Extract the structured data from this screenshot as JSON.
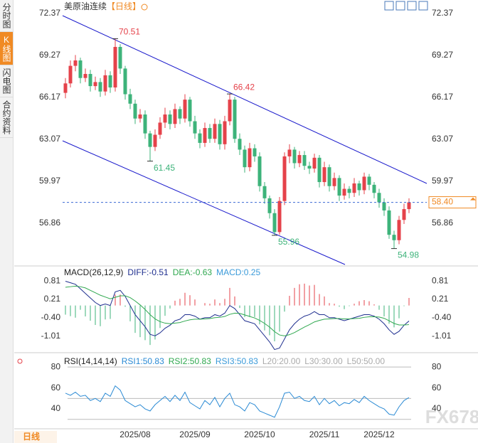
{
  "header": {
    "symbol": "美原油连续",
    "period": "【日线】"
  },
  "tabs": [
    "分时图",
    "K线图",
    "闪电图",
    "合约资料"
  ],
  "timeframe": "日线",
  "watermark": "FX678",
  "chart_data": {
    "type": "candlestick",
    "categories": [
      null,
      null,
      null,
      null,
      null,
      null,
      null,
      null,
      null,
      null,
      null,
      null,
      null,
      null,
      "2025/08",
      null,
      null,
      null,
      null,
      null,
      null,
      null,
      null,
      null,
      null,
      null,
      "2025/09",
      null,
      null,
      null,
      null,
      null,
      null,
      null,
      null,
      null,
      null,
      null,
      null,
      "2025/10",
      null,
      null,
      null,
      null,
      null,
      null,
      null,
      null,
      null,
      null,
      null,
      null,
      "2025/11",
      null,
      null,
      null,
      null,
      null,
      null,
      null,
      null,
      null,
      null,
      "2025/12",
      null,
      null,
      null,
      null,
      null,
      null
    ],
    "price": {
      "ylim": [
        53.8,
        72.95
      ],
      "yticks": [
        56.86,
        59.97,
        63.07,
        66.17,
        69.27,
        72.37
      ],
      "up_color": "#e5424a",
      "down_color": "#3db37a",
      "open": [
        66.5,
        67.2,
        68.5,
        68.9,
        67.6,
        67.9,
        67.0,
        67.3,
        66.6,
        67.8,
        66.9,
        69.9,
        68.3,
        66.4,
        65.7,
        64.6,
        64.9,
        63.5,
        62.5,
        63.4,
        64.3,
        64.9,
        64.2,
        65.3,
        64.6,
        66.0,
        64.4,
        63.5,
        62.8,
        63.9,
        63.1,
        64.2,
        62.7,
        64.4,
        66.0,
        63.1,
        62.3,
        61.0,
        62.4,
        61.8,
        59.6,
        58.7,
        57.6,
        56.2,
        58.5,
        61.8,
        62.3,
        61.3,
        61.9,
        61.1,
        60.9,
        61.7,
        59.9,
        61.0,
        59.6,
        60.2,
        58.9,
        59.4,
        59.1,
        59.8,
        59.3,
        60.3,
        59.7,
        59.1,
        58.4,
        57.8,
        56.0,
        55.6,
        57.1,
        57.9
      ],
      "high": [
        67.6,
        68.9,
        69.3,
        69.1,
        68.3,
        68.2,
        67.7,
        67.6,
        68.2,
        68.1,
        70.51,
        70.1,
        68.5,
        66.8,
        66.0,
        65.3,
        65.2,
        63.7,
        63.8,
        64.7,
        65.4,
        65.2,
        65.7,
        65.5,
        66.4,
        66.2,
        64.8,
        63.8,
        64.3,
        64.2,
        64.6,
        64.5,
        64.8,
        66.42,
        66.2,
        63.5,
        62.6,
        62.8,
        62.7,
        62.1,
        59.9,
        58.9,
        57.9,
        58.8,
        62.1,
        62.7,
        62.5,
        62.2,
        62.2,
        61.4,
        62.0,
        61.9,
        61.4,
        61.2,
        60.6,
        60.4,
        59.8,
        59.6,
        60.2,
        60.0,
        60.6,
        60.5,
        59.9,
        59.4,
        58.7,
        58.1,
        56.3,
        57.4,
        58.3,
        58.7
      ],
      "low": [
        66.1,
        66.9,
        68.1,
        67.2,
        67.3,
        66.6,
        66.7,
        66.2,
        66.3,
        66.5,
        66.6,
        67.9,
        66.0,
        65.3,
        64.2,
        64.3,
        63.1,
        61.45,
        62.2,
        63.1,
        63.9,
        63.8,
        63.9,
        64.2,
        64.3,
        64.0,
        63.1,
        62.4,
        62.5,
        62.8,
        62.8,
        62.3,
        62.3,
        64.1,
        62.8,
        61.9,
        60.6,
        60.7,
        61.4,
        59.2,
        58.3,
        57.2,
        55.96,
        56.0,
        58.2,
        61.3,
        60.9,
        61.0,
        60.8,
        60.5,
        60.6,
        59.5,
        59.6,
        59.2,
        59.3,
        58.5,
        58.6,
        58.7,
        58.8,
        58.9,
        59.0,
        59.3,
        58.7,
        58.0,
        57.4,
        55.7,
        54.98,
        55.3,
        56.8,
        57.6
      ],
      "close": [
        67.2,
        68.5,
        68.9,
        67.6,
        67.9,
        67.0,
        67.3,
        66.6,
        67.8,
        66.9,
        69.9,
        68.3,
        66.4,
        65.7,
        64.6,
        64.9,
        63.5,
        62.5,
        63.4,
        64.3,
        64.9,
        64.2,
        65.3,
        64.6,
        66.0,
        64.4,
        63.5,
        62.8,
        63.9,
        63.1,
        64.2,
        62.7,
        64.4,
        66.0,
        63.1,
        62.3,
        61.0,
        62.4,
        61.8,
        59.6,
        58.7,
        57.6,
        56.2,
        58.5,
        61.8,
        62.3,
        61.3,
        61.9,
        61.1,
        60.9,
        61.7,
        59.9,
        61.0,
        59.6,
        60.2,
        58.9,
        59.4,
        59.1,
        59.8,
        59.3,
        60.3,
        59.7,
        59.1,
        58.4,
        57.8,
        56.0,
        55.6,
        57.1,
        57.9,
        58.4
      ],
      "annotations": [
        70.51,
        61.45,
        66.42,
        55.96,
        54.98
      ],
      "last_price": {
        "value": 58.4,
        "label": "58.40"
      }
    },
    "macd": {
      "title": "MACD(26,12,9)",
      "ylim": [
        -1.46,
        1.21
      ],
      "yticks": [
        0.81,
        0.21,
        {
          "value": -0.4,
          "label": "-0.40"
        },
        -1.01
      ],
      "legend": [
        {
          "name": "DIFF:",
          "value": -0.51,
          "color": "#1f2f8f"
        },
        {
          "name": "DEA:",
          "value": -0.63,
          "color": "#2fa84f"
        },
        {
          "name": "MACD:",
          "value": 0.25,
          "color": "#3a9ad9"
        }
      ],
      "diff": [
        0.8,
        0.75,
        0.7,
        0.55,
        0.4,
        0.25,
        0.1,
        0.0,
        0.05,
        0.0,
        0.45,
        0.5,
        0.3,
        0.0,
        -0.3,
        -0.5,
        -0.7,
        -0.95,
        -1.0,
        -0.9,
        -0.75,
        -0.65,
        -0.5,
        -0.45,
        -0.3,
        -0.3,
        -0.35,
        -0.45,
        -0.4,
        -0.4,
        -0.3,
        -0.35,
        -0.25,
        0.0,
        -0.1,
        -0.3,
        -0.5,
        -0.55,
        -0.6,
        -0.8,
        -1.0,
        -1.2,
        -1.45,
        -1.4,
        -1.1,
        -0.8,
        -0.6,
        -0.45,
        -0.35,
        -0.3,
        -0.2,
        -0.3,
        -0.3,
        -0.4,
        -0.4,
        -0.45,
        -0.5,
        -0.45,
        -0.4,
        -0.35,
        -0.3,
        -0.3,
        -0.35,
        -0.45,
        -0.6,
        -0.8,
        -0.95,
        -0.85,
        -0.65,
        -0.51
      ],
      "dea": [
        0.6,
        0.62,
        0.64,
        0.62,
        0.58,
        0.5,
        0.42,
        0.34,
        0.28,
        0.22,
        0.27,
        0.32,
        0.32,
        0.26,
        0.15,
        0.02,
        -0.13,
        -0.3,
        -0.44,
        -0.53,
        -0.58,
        -0.6,
        -0.58,
        -0.56,
        -0.51,
        -0.47,
        -0.45,
        -0.45,
        -0.44,
        -0.43,
        -0.4,
        -0.39,
        -0.36,
        -0.29,
        -0.25,
        -0.26,
        -0.31,
        -0.36,
        -0.41,
        -0.49,
        -0.59,
        -0.71,
        -0.86,
        -0.97,
        -1.0,
        -0.96,
        -0.89,
        -0.8,
        -0.71,
        -0.63,
        -0.54,
        -0.49,
        -0.45,
        -0.44,
        -0.43,
        -0.43,
        -0.44,
        -0.44,
        -0.43,
        -0.42,
        -0.39,
        -0.37,
        -0.37,
        -0.38,
        -0.42,
        -0.5,
        -0.59,
        -0.64,
        -0.64,
        -0.63
      ],
      "histogram": [
        -0.3,
        -0.35,
        -0.4,
        -0.14,
        -0.36,
        -0.5,
        -0.64,
        -0.68,
        -0.46,
        -0.44,
        0.36,
        0.36,
        -0.04,
        -0.52,
        -0.9,
        -1.04,
        -1.14,
        -1.3,
        -1.12,
        -0.74,
        -0.34,
        -0.1,
        0.16,
        0.22,
        0.42,
        0.34,
        0.2,
        0.0,
        0.08,
        0.06,
        0.2,
        0.08,
        0.22,
        0.58,
        0.3,
        -0.08,
        -0.38,
        -0.38,
        -0.38,
        -0.62,
        -0.82,
        -0.98,
        -1.18,
        -0.86,
        -0.2,
        0.32,
        0.58,
        0.7,
        0.72,
        0.66,
        0.68,
        0.38,
        0.3,
        0.08,
        0.06,
        -0.04,
        -0.12,
        -0.02,
        0.06,
        0.14,
        0.18,
        0.14,
        0.04,
        -0.14,
        -0.36,
        -0.6,
        -0.72,
        -0.42,
        -0.02,
        0.25
      ],
      "up_color": "#e5424a",
      "down_color": "#3db37a"
    },
    "rsi": {
      "title": "RSI(14,14,14)",
      "ylim": [
        21,
        91
      ],
      "yticks": [
        40,
        60,
        80
      ],
      "color": "#2a8ad4",
      "legend": [
        {
          "name": "RSI1:",
          "value": 50.83,
          "color": "#2a8ad4"
        },
        {
          "name": "RSI2:",
          "value": 50.83,
          "color": "#2fa84f"
        },
        {
          "name": "RSI3:",
          "value": 50.83,
          "color": "#3a9ad9"
        }
      ],
      "levels": [
        {
          "name": "L20:",
          "level": {
            "value": 20,
            "label": "20.00"
          }
        },
        {
          "name": "L30:",
          "level": {
            "value": 30,
            "label": "30.00"
          }
        },
        {
          "name": "L50:",
          "level": {
            "value": 50,
            "label": "50.00"
          }
        }
      ],
      "values": [
        55,
        53,
        56,
        52,
        53,
        48,
        50,
        47,
        55,
        52,
        62,
        58,
        48,
        45,
        42,
        44,
        40,
        38,
        44,
        48,
        52,
        47,
        53,
        48,
        56,
        46,
        43,
        40,
        48,
        44,
        51,
        42,
        50,
        55,
        44,
        42,
        38,
        46,
        44,
        38,
        36,
        34,
        32,
        42,
        55,
        56,
        50,
        52,
        48,
        47,
        52,
        44,
        50,
        45,
        48,
        43,
        46,
        45,
        49,
        46,
        52,
        48,
        45,
        42,
        40,
        35,
        34,
        42,
        48,
        50.83
      ]
    }
  }
}
